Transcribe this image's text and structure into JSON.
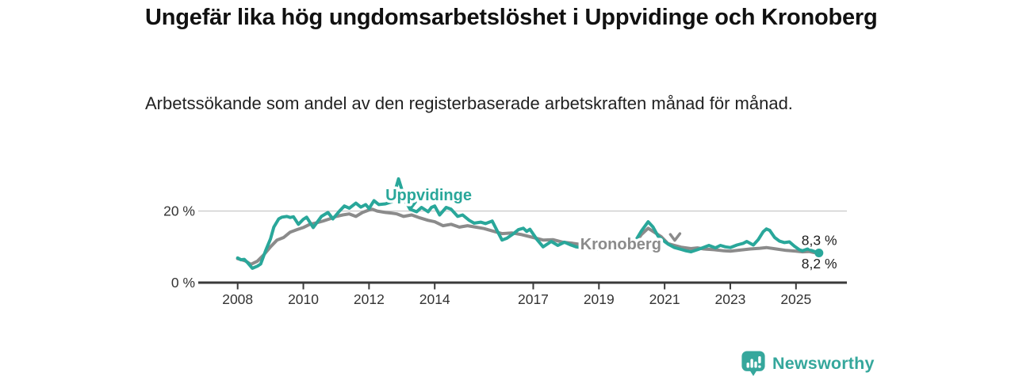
{
  "colors": {
    "accent_teal": "#29a79a",
    "series_gray": "#8b8b8b",
    "axis": "#3a3a3a",
    "grid": "#cccccc",
    "text_dark": "#111111",
    "logo_teal": "#35a79c"
  },
  "footer": {
    "brand": "Newsworthy",
    "logo_icon": "newsworthy-speech-bubble-bar-chart-icon"
  },
  "chart_data": {
    "type": "line",
    "title": "Ungefär lika hög ungdomsarbetslöshet i Uppvidinge och Kronoberg",
    "subtitle": "Arbetssökande som andel av den registerbaserade arbetskraften månad för månad.",
    "x_unit": "year, monthly observations",
    "y_unit": "percent",
    "xlim": [
      2006.8,
      2026.55
    ],
    "ylim": [
      0,
      30.3
    ],
    "gridlines": [
      20
    ],
    "yticks": [
      {
        "v": 0,
        "label": "0 %"
      },
      {
        "v": 20,
        "label": "20 %"
      }
    ],
    "xticks": [
      {
        "v": 2008,
        "label": "2008"
      },
      {
        "v": 2010,
        "label": "2010"
      },
      {
        "v": 2012,
        "label": "2012"
      },
      {
        "v": 2014,
        "label": "2014"
      },
      {
        "v": 2017,
        "label": "2017"
      },
      {
        "v": 2019,
        "label": "2019"
      },
      {
        "v": 2021,
        "label": "2021"
      },
      {
        "v": 2023,
        "label": "2023"
      },
      {
        "v": 2025,
        "label": "2025"
      }
    ],
    "series": [
      {
        "name": "Kronoberg",
        "color": "#8b8b8b",
        "end_dot": false,
        "end_label": "8,2 %",
        "x": [
          2008.0,
          2008.15,
          2008.25,
          2008.4,
          2008.6,
          2008.8,
          2009.0,
          2009.2,
          2009.4,
          2009.6,
          2009.8,
          2010.0,
          2010.2,
          2010.4,
          2010.6,
          2010.8,
          2011.0,
          2011.2,
          2011.4,
          2011.6,
          2011.8,
          2012.0,
          2012.1,
          2012.25,
          2012.5,
          2012.7,
          2012.85,
          2013.05,
          2013.3,
          2013.55,
          2013.8,
          2014.0,
          2014.25,
          2014.5,
          2014.75,
          2015.0,
          2015.25,
          2015.5,
          2015.85,
          2016.05,
          2016.35,
          2016.65,
          2017.0,
          2017.3,
          2017.6,
          2017.9,
          2018.2,
          2018.5,
          2018.8,
          2019.1,
          2019.4,
          2019.7,
          2019.9,
          2020.1,
          2020.3,
          2020.5,
          2020.7,
          2020.9,
          2021.1,
          2021.3,
          2021.5,
          2021.8,
          2022.0,
          2022.2,
          2022.5,
          2022.8,
          2023.0,
          2023.3,
          2023.6,
          2023.9,
          2024.1,
          2024.4,
          2024.7,
          2025.0,
          2025.2,
          2025.4,
          2025.55,
          2025.7
        ],
        "values": [
          6.7,
          6.3,
          6.0,
          5.1,
          6.0,
          7.8,
          10.0,
          11.9,
          12.6,
          14.1,
          14.8,
          15.4,
          16.3,
          16.7,
          17.2,
          17.8,
          18.5,
          18.9,
          19.2,
          18.5,
          19.6,
          20.3,
          20.5,
          20.0,
          19.6,
          19.4,
          19.2,
          18.5,
          18.9,
          18.1,
          17.4,
          17.0,
          15.9,
          16.3,
          15.5,
          15.9,
          15.5,
          15.1,
          14.2,
          13.7,
          13.9,
          13.4,
          12.6,
          11.9,
          12.0,
          11.3,
          11.0,
          10.6,
          10.3,
          10.1,
          9.9,
          10.0,
          10.3,
          11.0,
          13.5,
          15.2,
          14.0,
          12.8,
          10.9,
          10.4,
          9.9,
          9.5,
          9.7,
          9.4,
          9.2,
          8.9,
          8.8,
          9.1,
          9.4,
          9.6,
          9.8,
          9.4,
          9.0,
          8.8,
          8.6,
          8.7,
          8.4,
          8.2
        ]
      },
      {
        "name": "Uppvidinge",
        "color": "#29a79a",
        "end_dot": true,
        "end_label": "8,3 %",
        "x": [
          2008.0,
          2008.1,
          2008.2,
          2008.3,
          2008.45,
          2008.6,
          2008.7,
          2008.85,
          2009.0,
          2009.1,
          2009.25,
          2009.35,
          2009.5,
          2009.6,
          2009.7,
          2009.85,
          2010.0,
          2010.1,
          2010.3,
          2010.55,
          2010.75,
          2010.9,
          2011.1,
          2011.25,
          2011.4,
          2011.6,
          2011.75,
          2011.9,
          2012.0,
          2012.15,
          2012.3,
          2012.5,
          2012.7,
          2012.9,
          2013.1,
          2013.25,
          2013.45,
          2013.6,
          2013.8,
          2013.9,
          2014.0,
          2014.15,
          2014.35,
          2014.5,
          2014.7,
          2014.85,
          2015.05,
          2015.2,
          2015.4,
          2015.55,
          2015.75,
          2015.9,
          2016.05,
          2016.2,
          2016.4,
          2016.55,
          2016.7,
          2016.8,
          2016.9,
          2017.1,
          2017.3,
          2017.55,
          2017.75,
          2017.95,
          2018.15,
          2018.3,
          2018.6,
          2018.9,
          2019.2,
          2019.5,
          2019.8,
          2020.1,
          2020.3,
          2020.5,
          2020.65,
          2020.8,
          2021.0,
          2021.1,
          2021.3,
          2021.5,
          2021.65,
          2021.8,
          2022.0,
          2022.15,
          2022.35,
          2022.55,
          2022.7,
          2022.85,
          2023.0,
          2023.2,
          2023.4,
          2023.5,
          2023.7,
          2023.85,
          2024.0,
          2024.1,
          2024.2,
          2024.35,
          2024.5,
          2024.65,
          2024.8,
          2024.95,
          2025.1,
          2025.2,
          2025.35,
          2025.5,
          2025.6,
          2025.7
        ],
        "values": [
          6.9,
          6.4,
          6.5,
          5.6,
          4.0,
          4.6,
          5.2,
          8.9,
          12.2,
          15.5,
          17.8,
          18.3,
          18.5,
          18.2,
          18.4,
          16.3,
          17.7,
          18.3,
          15.4,
          18.5,
          19.6,
          17.8,
          20.0,
          21.4,
          20.8,
          22.2,
          21.1,
          21.8,
          20.7,
          22.9,
          21.8,
          22.0,
          22.6,
          29.0,
          23.0,
          20.5,
          19.8,
          21.0,
          19.8,
          21.0,
          21.4,
          18.9,
          21.0,
          20.5,
          18.5,
          18.9,
          17.4,
          16.6,
          16.9,
          16.5,
          17.2,
          14.5,
          11.9,
          12.4,
          13.7,
          14.8,
          15.2,
          14.3,
          14.9,
          12.2,
          10.0,
          11.5,
          10.4,
          11.3,
          10.5,
          10.0,
          9.6,
          9.4,
          9.6,
          10.0,
          10.5,
          11.5,
          14.5,
          17.0,
          15.5,
          13.0,
          11.5,
          10.8,
          9.8,
          9.3,
          8.9,
          8.6,
          9.2,
          9.7,
          10.4,
          9.7,
          10.4,
          10.0,
          9.8,
          10.5,
          11.0,
          11.5,
          10.5,
          12.0,
          14.2,
          15.0,
          14.6,
          12.6,
          11.6,
          11.2,
          11.4,
          10.2,
          9.2,
          8.9,
          9.4,
          8.9,
          8.6,
          8.3
        ]
      }
    ],
    "annotations": [
      {
        "series": "Uppvidinge",
        "text": "Uppvidinge",
        "x": 2012.5,
        "y": 24.6,
        "color": "#29a79a",
        "arrow_x": 2013.27,
        "arrow_y": 20.6
      },
      {
        "series": "Kronoberg",
        "text": "Kronoberg",
        "x": 2018.43,
        "y": 10.85,
        "color": "#8b8b8b",
        "arrow_x": 2021.32,
        "arrow_y": 11.8
      }
    ]
  }
}
